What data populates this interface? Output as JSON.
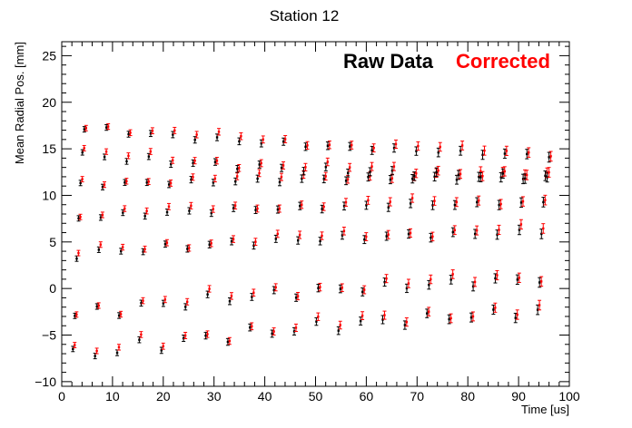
{
  "chart_data": {
    "type": "scatter",
    "title": "Station 12",
    "xlabel": "Time [us]",
    "ylabel": "Mean Radial Pos. [mm]",
    "xlim": [
      0,
      100
    ],
    "ylim": [
      -10.5,
      26.5
    ],
    "x_ticks": [
      "0",
      "10",
      "20",
      "30",
      "40",
      "50",
      "60",
      "70",
      "80",
      "90",
      "100"
    ],
    "y_ticks": [
      "−10",
      "−5",
      "0",
      "5",
      "10",
      "15",
      "20",
      "25"
    ],
    "grid": false,
    "legend_position": "top-right",
    "period_us": 4.36,
    "lines": [
      {
        "base0": -7.5,
        "amp0": 3.0,
        "dir": 1
      },
      {
        "base0": -3.0,
        "amp0": 2.5,
        "dir": 1
      },
      {
        "base0": 3.5,
        "amp0": 1.5,
        "dir": 1
      },
      {
        "base0": 7.5,
        "amp0": 1.0,
        "dir": 1
      },
      {
        "base0": 11.0,
        "amp0": 1.0,
        "dir": 1
      },
      {
        "base0": 14.5,
        "amp0": 1.5,
        "dir": -1
      },
      {
        "base0": 17.5,
        "amp0": 1.0,
        "dir": -1
      }
    ],
    "series": [
      {
        "name": "Raw Data",
        "color": "#000000"
      },
      {
        "name": "Corrected",
        "color": "#ff0000"
      }
    ]
  }
}
